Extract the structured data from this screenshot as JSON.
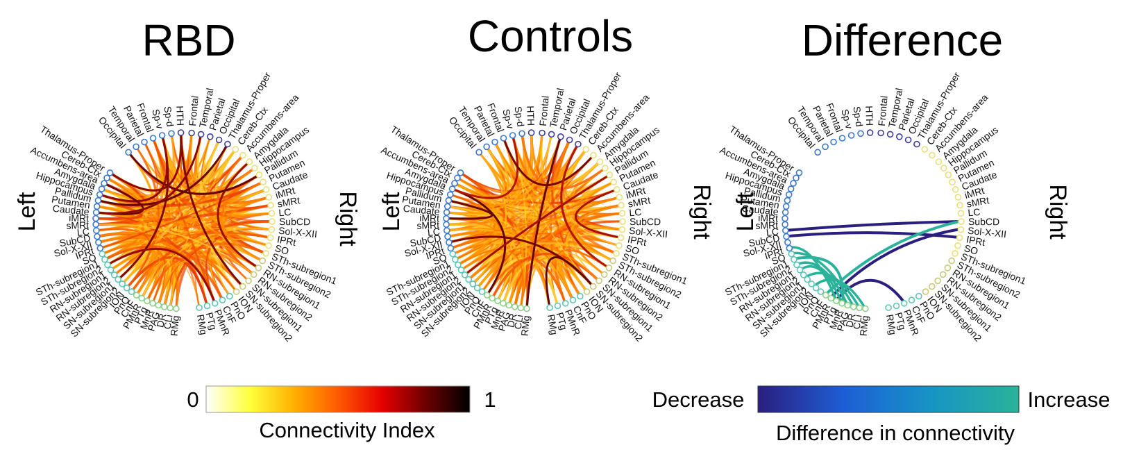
{
  "panels": [
    {
      "title": "RBD",
      "left": "Left",
      "right": "Right"
    },
    {
      "title": "Controls",
      "left": "Left",
      "right": "Right"
    },
    {
      "title": "Difference",
      "left": "Left",
      "right": "Right"
    }
  ],
  "regions": {
    "left_hemisphere": [
      "Thalamus-Proper",
      "Cereb-Ctx",
      "Accumbens-area",
      "Amygdala",
      "Hippocampus",
      "Pallidum",
      "Putamen",
      "Caudate",
      "iMRt",
      "sMRt",
      "LC",
      "SubCD",
      "Sol-X-XII",
      "IPRt",
      "SO",
      "STh-subregion1",
      "STh-subregion2",
      "RN-subregion1",
      "RN-subregion2",
      "SN-subregion1",
      "SN-subregion2",
      "ION",
      "PnO",
      "CnF",
      "PMnR",
      "PTg",
      "MnR",
      "PAG",
      "DR",
      "CLi",
      "RMg"
    ],
    "top_left": [
      "Occipital",
      "Temporal",
      "Parietal",
      "Frontal",
      "Sp-v",
      "Sp-d",
      "HTH"
    ],
    "top_right": [
      "Frontal",
      "Temporal",
      "Parietal",
      "Occipital",
      "Thalamus-Proper",
      "Cereb-Ctx",
      "Accumbens-area"
    ],
    "right_hemisphere": [
      "Amygdala",
      "Hippocampus",
      "Pallidum",
      "Putamen",
      "Caudate",
      "iMRt",
      "sMRt",
      "LC",
      "SubCD",
      "Sol-X-XII",
      "IPRt",
      "SO",
      "STh-subregion1",
      "STh-subregion2",
      "RN-subregion1",
      "RN-subregion2",
      "SN-subregion1",
      "SN-subregion2",
      "ION",
      "PnO",
      "CnF",
      "PMnR",
      "PTg",
      "RMg"
    ]
  },
  "colorbar_connectivity": {
    "min_label": "0",
    "max_label": "1",
    "label": "Connectivity Index",
    "colors": [
      "#ffffff",
      "#ffff3a",
      "#ffb000",
      "#ff5a00",
      "#e60000",
      "#6b0000",
      "#000000"
    ]
  },
  "colorbar_difference": {
    "min_label": "Decrease",
    "max_label": "Increase",
    "label": "Difference in connectivity",
    "colors": [
      "#2a1f7e",
      "#1d5fd6",
      "#1795c4",
      "#2ab39a"
    ]
  },
  "node_colors": {
    "blue": "#3a78cc",
    "navy": "#3c3c9c",
    "yellow": "#e8e07a",
    "cyan": "#5fc4b8",
    "green": "#8ccf88"
  },
  "difference_connections": [
    {
      "from": "LC",
      "to": "SubCD",
      "type": "decrease"
    },
    {
      "from": "SubCD",
      "to": "IPRt",
      "type": "decrease"
    },
    {
      "from": "PMnR",
      "to": "Sol-X-XII",
      "type": "decrease"
    },
    {
      "from": "PTg",
      "to": "PMnR",
      "type": "decrease"
    },
    {
      "from": "STh-subregion1",
      "to": "MnR",
      "type": "increase"
    },
    {
      "from": "CnF",
      "to": "SubCD",
      "type": "increase"
    }
  ]
}
